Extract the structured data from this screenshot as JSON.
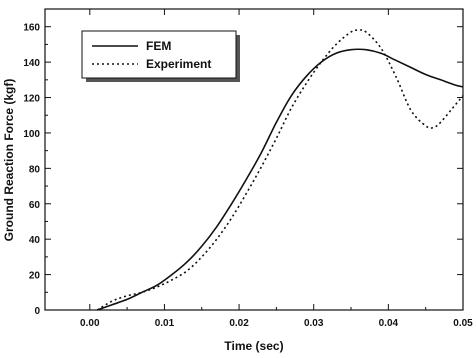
{
  "chart_data": {
    "type": "line",
    "title": "",
    "xlabel": "Time (sec)",
    "ylabel": "Ground  Reaction  Force (kgf)",
    "xlim": [
      -0.006,
      0.05
    ],
    "ylim": [
      0,
      170
    ],
    "xticks": [
      0.0,
      0.01,
      0.02,
      0.03,
      0.04,
      0.05
    ],
    "xtick_labels": [
      "0.00",
      "0.01",
      "0.02",
      "0.03",
      "0.04",
      "0.05"
    ],
    "yticks": [
      0,
      20,
      40,
      60,
      80,
      100,
      120,
      140,
      160
    ],
    "ytick_labels": [
      "0",
      "20",
      "40",
      "60",
      "80",
      "100",
      "120",
      "140",
      "160"
    ],
    "grid": false,
    "legend_position": "top-left",
    "series": [
      {
        "name": "FEM",
        "style": "solid",
        "x": [
          0.001,
          0.003,
          0.005,
          0.007,
          0.009,
          0.011,
          0.013,
          0.015,
          0.017,
          0.019,
          0.021,
          0.023,
          0.025,
          0.027,
          0.029,
          0.031,
          0.033,
          0.035,
          0.037,
          0.039,
          0.041,
          0.043,
          0.045,
          0.047,
          0.049,
          0.05
        ],
        "y": [
          0,
          3,
          6,
          10,
          14,
          20,
          27,
          36,
          47,
          60,
          74,
          89,
          106,
          121,
          132,
          140,
          145,
          147,
          147,
          145,
          141,
          137,
          133,
          130,
          127,
          126
        ]
      },
      {
        "name": "Experiment",
        "style": "dotted",
        "x": [
          0.001,
          0.003,
          0.005,
          0.007,
          0.009,
          0.011,
          0.013,
          0.015,
          0.017,
          0.019,
          0.021,
          0.023,
          0.025,
          0.027,
          0.029,
          0.031,
          0.033,
          0.035,
          0.036,
          0.037,
          0.039,
          0.041,
          0.043,
          0.045,
          0.046,
          0.047,
          0.049,
          0.05
        ],
        "y": [
          0,
          5,
          8,
          10,
          13,
          17,
          22,
          30,
          40,
          52,
          66,
          81,
          97,
          114,
          128,
          140,
          150,
          157,
          158,
          157,
          148,
          132,
          113,
          104,
          103,
          106,
          116,
          121
        ]
      }
    ]
  }
}
